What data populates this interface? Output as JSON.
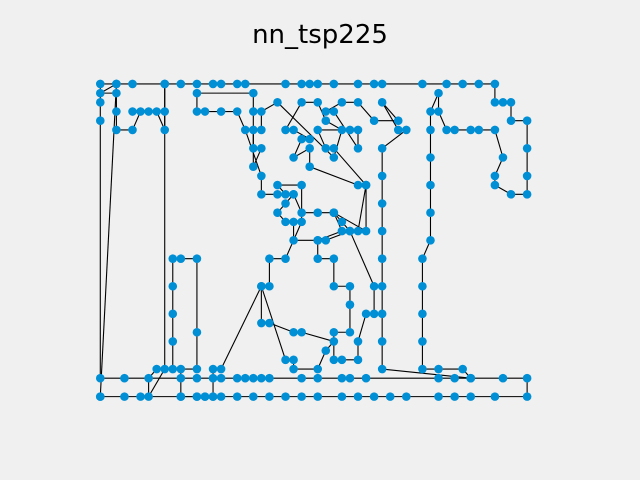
{
  "chart_data": {
    "type": "scatter",
    "title": "nn_tsp225",
    "xlabel": "",
    "ylabel": "",
    "axes_visible": false,
    "grid": false,
    "xlim": [
      -5.04,
      118.14
    ],
    "ylim": [
      -5.52,
      73.64
    ],
    "point_color": "#008fd5",
    "line_color": "#000000",
    "tour_closed": true,
    "points": [
      [
        0,
        0
      ],
      [
        6,
        0
      ],
      [
        10,
        0
      ],
      [
        20,
        0
      ],
      [
        24,
        0
      ],
      [
        26,
        0
      ],
      [
        28,
        0
      ],
      [
        30,
        0
      ],
      [
        34,
        0
      ],
      [
        38,
        0
      ],
      [
        42,
        0
      ],
      [
        46,
        0
      ],
      [
        50,
        0
      ],
      [
        54,
        0
      ],
      [
        60,
        0
      ],
      [
        64,
        0
      ],
      [
        68,
        0
      ],
      [
        72,
        0
      ],
      [
        76,
        0
      ],
      [
        84,
        0
      ],
      [
        88,
        0
      ],
      [
        92,
        0
      ],
      [
        98,
        0
      ],
      [
        106,
        0
      ],
      [
        106,
        4
      ],
      [
        100,
        4
      ],
      [
        92,
        4
      ],
      [
        88,
        4
      ],
      [
        84,
        4
      ],
      [
        66,
        4
      ],
      [
        62,
        4
      ],
      [
        60,
        4
      ],
      [
        54,
        4
      ],
      [
        50,
        4
      ],
      [
        42,
        4
      ],
      [
        40,
        4
      ],
      [
        38,
        4
      ],
      [
        36,
        4
      ],
      [
        34,
        4
      ],
      [
        30,
        4
      ],
      [
        28,
        4
      ],
      [
        24,
        4
      ],
      [
        20,
        4
      ],
      [
        6,
        4
      ],
      [
        0,
        4
      ],
      [
        0,
        60
      ],
      [
        0,
        64
      ],
      [
        0,
        68
      ],
      [
        4,
        68
      ],
      [
        8,
        68
      ],
      [
        16,
        68
      ],
      [
        20,
        68
      ],
      [
        24,
        68
      ],
      [
        28,
        68
      ],
      [
        30,
        68
      ],
      [
        34,
        68
      ],
      [
        36,
        68
      ],
      [
        46,
        68
      ],
      [
        50,
        68
      ],
      [
        52,
        68
      ],
      [
        54,
        68
      ],
      [
        58,
        68
      ],
      [
        64,
        68
      ],
      [
        68,
        68
      ],
      [
        70,
        68
      ],
      [
        80,
        68
      ],
      [
        86,
        68
      ],
      [
        90,
        68
      ],
      [
        94,
        68
      ],
      [
        98,
        68
      ],
      [
        98,
        64
      ],
      [
        100,
        64
      ],
      [
        102,
        64
      ],
      [
        102,
        60
      ],
      [
        106,
        60
      ],
      [
        106,
        54
      ],
      [
        106,
        48
      ],
      [
        106,
        44
      ],
      [
        102,
        44
      ],
      [
        98,
        46
      ],
      [
        98,
        48
      ],
      [
        100,
        52
      ],
      [
        98,
        58
      ],
      [
        94,
        58
      ],
      [
        92,
        58
      ],
      [
        88,
        58
      ],
      [
        86,
        58
      ],
      [
        84,
        62
      ],
      [
        84,
        66
      ],
      [
        82,
        62
      ],
      [
        82,
        58
      ],
      [
        82,
        52
      ],
      [
        82,
        46
      ],
      [
        82,
        40
      ],
      [
        82,
        34
      ],
      [
        80,
        30
      ],
      [
        80,
        24
      ],
      [
        80,
        18
      ],
      [
        80,
        12
      ],
      [
        80,
        6
      ],
      [
        84,
        6
      ],
      [
        90,
        6
      ],
      [
        92,
        4
      ],
      [
        70,
        6
      ],
      [
        70,
        12
      ],
      [
        70,
        18
      ],
      [
        70,
        24
      ],
      [
        70,
        30
      ],
      [
        70,
        36
      ],
      [
        70,
        42
      ],
      [
        70,
        48
      ],
      [
        70,
        54
      ],
      [
        76,
        58
      ],
      [
        74,
        58
      ],
      [
        70,
        64
      ],
      [
        74,
        60
      ],
      [
        68,
        60
      ],
      [
        64,
        64
      ],
      [
        60,
        64
      ],
      [
        56,
        62
      ],
      [
        58,
        62
      ],
      [
        64,
        54
      ],
      [
        64,
        58
      ],
      [
        62,
        58
      ],
      [
        54,
        58
      ],
      [
        56,
        54
      ],
      [
        58,
        54
      ],
      [
        66,
        46
      ],
      [
        64,
        46
      ],
      [
        52,
        50
      ],
      [
        52,
        54
      ],
      [
        48,
        52
      ],
      [
        50,
        56
      ],
      [
        52,
        56
      ],
      [
        48,
        58
      ],
      [
        46,
        58
      ],
      [
        50,
        64
      ],
      [
        54,
        64
      ],
      [
        56,
        60
      ],
      [
        60,
        58
      ],
      [
        58,
        52
      ],
      [
        44,
        64
      ],
      [
        40,
        62
      ],
      [
        40,
        58
      ],
      [
        38,
        58
      ],
      [
        38,
        54
      ],
      [
        40,
        54
      ],
      [
        38,
        50
      ],
      [
        38,
        62
      ],
      [
        38,
        66
      ],
      [
        24,
        66
      ],
      [
        24,
        62
      ],
      [
        26,
        62
      ],
      [
        30,
        62
      ],
      [
        34,
        62
      ],
      [
        36,
        58
      ],
      [
        40,
        48
      ],
      [
        40,
        44
      ],
      [
        44,
        44
      ],
      [
        48,
        44
      ],
      [
        50,
        40
      ],
      [
        54,
        40
      ],
      [
        58,
        40
      ],
      [
        60,
        38
      ],
      [
        62,
        36
      ],
      [
        64,
        36
      ],
      [
        66,
        46
      ],
      [
        66,
        36
      ],
      [
        58,
        40
      ],
      [
        60,
        36
      ],
      [
        54,
        34
      ],
      [
        56,
        34
      ],
      [
        62,
        36
      ],
      [
        68,
        24
      ],
      [
        68,
        18
      ],
      [
        66,
        18
      ],
      [
        64,
        12
      ],
      [
        64,
        8
      ],
      [
        60,
        8
      ],
      [
        58,
        8
      ],
      [
        58,
        14
      ],
      [
        62,
        14
      ],
      [
        62,
        20
      ],
      [
        62,
        24
      ],
      [
        58,
        24
      ],
      [
        58,
        30
      ],
      [
        54,
        30
      ],
      [
        54,
        34
      ],
      [
        48,
        34
      ],
      [
        48,
        38
      ],
      [
        46,
        38
      ],
      [
        44,
        40
      ],
      [
        46,
        42
      ],
      [
        48,
        44
      ],
      [
        46,
        44
      ],
      [
        44,
        46
      ],
      [
        50,
        46
      ],
      [
        50,
        38
      ],
      [
        46,
        30
      ],
      [
        42,
        30
      ],
      [
        42,
        24
      ],
      [
        40,
        24
      ],
      [
        40,
        16
      ],
      [
        42,
        16
      ],
      [
        48,
        14
      ],
      [
        50,
        14
      ],
      [
        58,
        12
      ],
      [
        56,
        10
      ],
      [
        54,
        6
      ],
      [
        48,
        6
      ],
      [
        48,
        8
      ],
      [
        46,
        8
      ],
      [
        40,
        24
      ],
      [
        30,
        6
      ],
      [
        28,
        6
      ],
      [
        28,
        0
      ],
      [
        26,
        0
      ],
      [
        24,
        0
      ],
      [
        20,
        0
      ],
      [
        20,
        6
      ],
      [
        24,
        6
      ],
      [
        24,
        14
      ],
      [
        24,
        30
      ],
      [
        20,
        30
      ],
      [
        18,
        30
      ],
      [
        18,
        24
      ],
      [
        18,
        18
      ],
      [
        18,
        12
      ],
      [
        18,
        6
      ],
      [
        14,
        6
      ],
      [
        12,
        4
      ],
      [
        12,
        0
      ],
      [
        16,
        6
      ],
      [
        16,
        68
      ],
      [
        16,
        62
      ],
      [
        16,
        58
      ],
      [
        14,
        62
      ],
      [
        12,
        62
      ],
      [
        8,
        62
      ],
      [
        10,
        62
      ],
      [
        8,
        58
      ],
      [
        4,
        58
      ],
      [
        4,
        62
      ],
      [
        4,
        66
      ],
      [
        0,
        66
      ],
      [
        4,
        68
      ],
      [
        0,
        0
      ]
    ]
  }
}
